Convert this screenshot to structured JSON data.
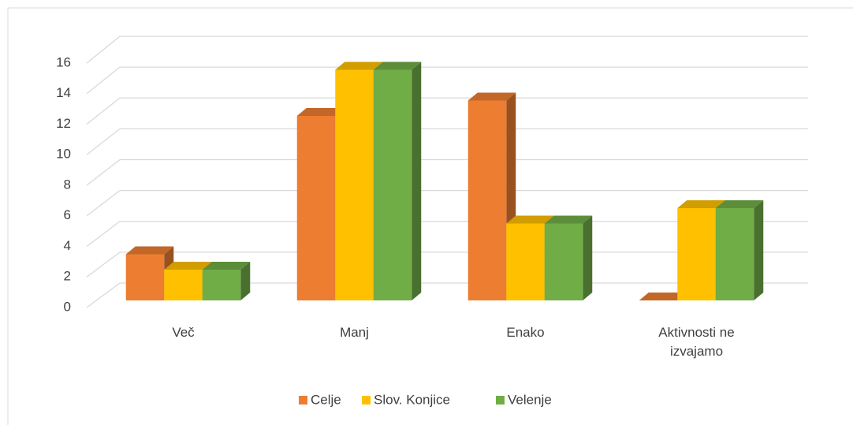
{
  "chart_data": {
    "type": "bar3d",
    "categories": [
      "Več",
      "Manj",
      "Enako",
      "Aktivnosti ne izvajamo"
    ],
    "series": [
      {
        "name": "Celje",
        "color": "#ed7d31",
        "values": [
          3,
          12,
          13,
          0
        ]
      },
      {
        "name": "Slov. Konjice",
        "color": "#ffc000",
        "values": [
          2,
          15,
          5,
          6
        ]
      },
      {
        "name": "Velenje",
        "color": "#70ad47",
        "values": [
          2,
          15,
          5,
          6
        ]
      }
    ],
    "ylim": [
      0,
      16
    ],
    "yticks": [
      0,
      2,
      4,
      6,
      8,
      10,
      12,
      14,
      16
    ],
    "grid": true,
    "legend": "bottom"
  }
}
